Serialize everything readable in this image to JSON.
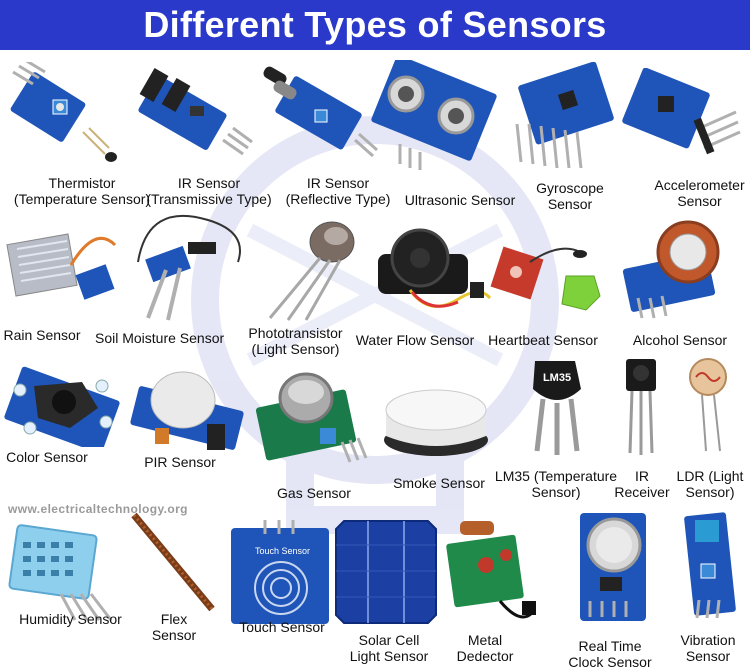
{
  "title": "Different Types of Sensors",
  "website": "www.electricaltechnology.org",
  "colors": {
    "banner": "#2a39c9",
    "title_text": "#ffffff",
    "pcb_blue": "#1f55b8",
    "watermark": "#cfd3ef"
  },
  "sensors": [
    {
      "id": "thermistor",
      "lines": [
        "Thermistor",
        "(Temperature Sensor)"
      ]
    },
    {
      "id": "ir-transmissive",
      "lines": [
        "IR Sensor",
        "(Transmissive Type)"
      ]
    },
    {
      "id": "ir-reflective",
      "lines": [
        "IR Sensor",
        "(Reflective Type)"
      ]
    },
    {
      "id": "ultrasonic",
      "lines": [
        "Ultrasonic Sensor"
      ]
    },
    {
      "id": "gyroscope",
      "lines": [
        "Gyroscope",
        "Sensor"
      ]
    },
    {
      "id": "accelerometer",
      "lines": [
        "Accelerometer",
        "Sensor"
      ]
    },
    {
      "id": "rain",
      "lines": [
        "Rain Sensor"
      ]
    },
    {
      "id": "soil-moisture",
      "lines": [
        "Soil Moisture Sensor"
      ]
    },
    {
      "id": "phototransistor",
      "lines": [
        "Phototransistor",
        "(Light Sensor)"
      ]
    },
    {
      "id": "water-flow",
      "lines": [
        "Water Flow Sensor"
      ]
    },
    {
      "id": "heartbeat",
      "lines": [
        "Heartbeat Sensor"
      ]
    },
    {
      "id": "alcohol",
      "lines": [
        "Alcohol Sensor"
      ]
    },
    {
      "id": "color",
      "lines": [
        "Color Sensor"
      ]
    },
    {
      "id": "pir",
      "lines": [
        "PIR Sensor"
      ]
    },
    {
      "id": "gas",
      "lines": [
        "Gas Sensor"
      ]
    },
    {
      "id": "smoke",
      "lines": [
        "Smoke Sensor"
      ]
    },
    {
      "id": "lm35",
      "lines": [
        "LM35 (Temperature",
        "Sensor)"
      ],
      "chip_text": "LM35"
    },
    {
      "id": "ir-receiver",
      "lines": [
        "IR",
        "Receiver"
      ]
    },
    {
      "id": "ldr",
      "lines": [
        "LDR (Light",
        "Sensor)"
      ]
    },
    {
      "id": "humidity",
      "lines": [
        "Humidity Sensor"
      ]
    },
    {
      "id": "flex",
      "lines": [
        "Flex",
        "Sensor"
      ]
    },
    {
      "id": "touch",
      "lines": [
        "Touch Sensor"
      ],
      "pcb_text": "Touch Sensor"
    },
    {
      "id": "solar-cell",
      "lines": [
        "Solar Cell",
        "Light Sensor"
      ]
    },
    {
      "id": "metal",
      "lines": [
        "Metal",
        "Dedector"
      ]
    },
    {
      "id": "rtc",
      "lines": [
        "Real Time",
        "Clock Sensor"
      ]
    },
    {
      "id": "vibration",
      "lines": [
        "Vibration",
        "Sensor"
      ]
    }
  ]
}
